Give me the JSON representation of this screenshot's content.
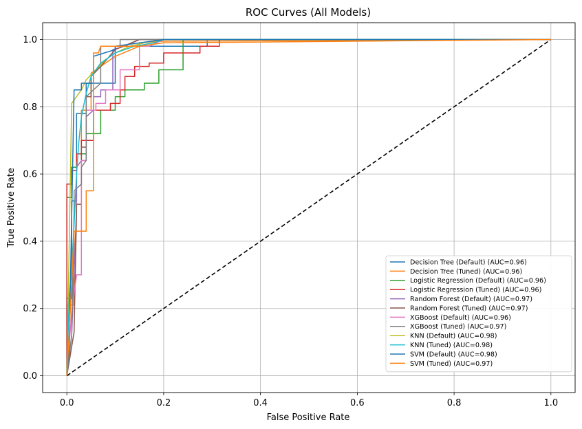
{
  "chart_data": {
    "type": "line",
    "title": "ROC Curves (All Models)",
    "xlabel": "False Positive Rate",
    "ylabel": "True Positive Rate",
    "xlim": [
      -0.05,
      1.05
    ],
    "ylim": [
      -0.05,
      1.05
    ],
    "xticks": [
      0.0,
      0.2,
      0.4,
      0.6,
      0.8,
      1.0
    ],
    "yticks": [
      0.0,
      0.2,
      0.4,
      0.6,
      0.8,
      1.0
    ],
    "xtick_labels": [
      "0.0",
      "0.2",
      "0.4",
      "0.6",
      "0.8",
      "1.0"
    ],
    "ytick_labels": [
      "0.0",
      "0.2",
      "0.4",
      "0.6",
      "0.8",
      "1.0"
    ],
    "grid": true,
    "legend_position": "lower-right",
    "diagonal": {
      "x": [
        0,
        1
      ],
      "y": [
        0,
        1
      ],
      "color": "#000000",
      "style": "dashed"
    },
    "series": [
      {
        "name": "Decision Tree (Default) (AUC=0.96)",
        "color": "#1f77b4",
        "x": [
          0,
          0,
          0.01,
          0.01,
          0.02,
          0.02,
          0.04,
          0.04,
          0.1,
          0.1,
          0.29,
          0.29,
          1.0
        ],
        "y": [
          0,
          0.23,
          0.23,
          0.52,
          0.52,
          0.78,
          0.78,
          0.87,
          0.87,
          0.98,
          0.98,
          1.0,
          1.0
        ]
      },
      {
        "name": "Decision Tree (Tuned) (AUC=0.96)",
        "color": "#ff7f0e",
        "x": [
          0,
          0,
          0.015,
          0.015,
          0.03,
          0.03,
          0.05,
          0.05,
          0.1,
          0.15,
          0.15,
          0.2,
          1.0
        ],
        "y": [
          0,
          0.21,
          0.21,
          0.43,
          0.43,
          0.79,
          0.79,
          0.9,
          0.95,
          0.98,
          0.99,
          0.995,
          1.0
        ]
      },
      {
        "name": "Logistic Regression (Default) (AUC=0.96)",
        "color": "#2ca02c",
        "x": [
          0,
          0,
          0.01,
          0.01,
          0.02,
          0.02,
          0.04,
          0.04,
          0.07,
          0.07,
          0.1,
          0.1,
          0.12,
          0.12,
          0.16,
          0.16,
          0.19,
          0.19,
          0.24,
          0.24,
          1.0
        ],
        "y": [
          0,
          0.53,
          0.53,
          0.62,
          0.62,
          0.66,
          0.66,
          0.72,
          0.72,
          0.79,
          0.79,
          0.83,
          0.83,
          0.85,
          0.85,
          0.87,
          0.87,
          0.91,
          0.91,
          1.0,
          1.0
        ]
      },
      {
        "name": "Logistic Regression (Tuned) (AUC=0.96)",
        "color": "#d62728",
        "x": [
          0,
          0,
          0.01,
          0.01,
          0.02,
          0.02,
          0.03,
          0.03,
          0.055,
          0.055,
          0.09,
          0.09,
          0.11,
          0.11,
          0.12,
          0.12,
          0.14,
          0.14,
          0.17,
          0.17,
          0.2,
          0.2,
          0.235,
          0.235,
          0.275,
          0.275,
          0.315,
          0.315,
          1.0
        ],
        "y": [
          0,
          0.57,
          0.57,
          0.61,
          0.61,
          0.66,
          0.66,
          0.7,
          0.7,
          0.79,
          0.79,
          0.81,
          0.81,
          0.85,
          0.85,
          0.89,
          0.89,
          0.92,
          0.92,
          0.93,
          0.93,
          0.96,
          0.96,
          0.96,
          0.96,
          0.98,
          0.98,
          1.0,
          1.0
        ]
      },
      {
        "name": "Random Forest (Default) (AUC=0.97)",
        "color": "#9467bd",
        "x": [
          0,
          0.01,
          0.02,
          0.02,
          0.03,
          0.04,
          0.04,
          0.055,
          0.055,
          0.07,
          0.07,
          0.095,
          0.095,
          0.12,
          0.15,
          1.0
        ],
        "y": [
          0,
          0.12,
          0.5,
          0.62,
          0.64,
          0.64,
          0.77,
          0.79,
          0.83,
          0.83,
          0.85,
          0.85,
          0.97,
          0.98,
          1.0,
          1.0
        ]
      },
      {
        "name": "Random Forest (Tuned) (AUC=0.97)",
        "color": "#8c564b",
        "x": [
          0,
          0.015,
          0.02,
          0.02,
          0.03,
          0.03,
          0.04,
          0.04,
          0.05,
          0.05,
          0.07,
          0.1,
          0.15,
          1.0
        ],
        "y": [
          0,
          0.13,
          0.49,
          0.51,
          0.51,
          0.68,
          0.68,
          0.83,
          0.83,
          0.89,
          0.92,
          0.97,
          1.0,
          1.0
        ]
      },
      {
        "name": "XGBoost (Default) (AUC=0.96)",
        "color": "#e377c2",
        "x": [
          0,
          0.01,
          0.02,
          0.02,
          0.03,
          0.03,
          0.04,
          0.04,
          0.06,
          0.06,
          0.08,
          0.08,
          0.1,
          0.1,
          0.11,
          0.11,
          0.15,
          0.15,
          0.17,
          0.2,
          1.0
        ],
        "y": [
          0,
          0.19,
          0.3,
          0.3,
          0.3,
          0.64,
          0.64,
          0.79,
          0.79,
          0.81,
          0.81,
          0.85,
          0.85,
          0.85,
          0.85,
          0.91,
          0.91,
          0.98,
          0.98,
          1.0,
          1.0
        ]
      },
      {
        "name": "XGBoost (Tuned) (AUC=0.97)",
        "color": "#7f7f7f",
        "x": [
          0,
          0.01,
          0.015,
          0.015,
          0.03,
          0.03,
          0.04,
          0.04,
          0.07,
          0.07,
          0.11,
          0.11,
          0.15,
          1.0
        ],
        "y": [
          0,
          0.12,
          0.49,
          0.55,
          0.57,
          0.62,
          0.64,
          0.83,
          0.87,
          0.98,
          0.98,
          1.0,
          1.0,
          1.0
        ]
      },
      {
        "name": "KNN (Default) (AUC=0.98)",
        "color": "#bcbd22",
        "x": [
          0,
          0.01,
          0.02,
          0.03,
          0.04,
          0.06,
          0.08,
          0.1,
          0.13,
          0.16,
          0.2,
          1.0
        ],
        "y": [
          0,
          0.81,
          0.83,
          0.85,
          0.88,
          0.91,
          0.94,
          0.96,
          0.98,
          0.99,
          1.0,
          1.0
        ]
      },
      {
        "name": "KNN (Tuned) (AUC=0.98)",
        "color": "#17becf",
        "x": [
          0,
          0.005,
          0.01,
          0.015,
          0.02,
          0.025,
          0.03,
          0.04,
          0.05,
          0.07,
          0.1,
          0.14,
          0.18,
          0.2,
          1.0
        ],
        "y": [
          0,
          0.24,
          0.32,
          0.45,
          0.6,
          0.7,
          0.77,
          0.84,
          0.89,
          0.93,
          0.96,
          0.98,
          0.99,
          1.0,
          1.0
        ]
      },
      {
        "name": "SVM (Default) (AUC=0.98)",
        "color": "#1f77b4",
        "x": [
          0,
          0.005,
          0.015,
          0.015,
          0.03,
          0.03,
          0.055,
          0.055,
          0.1,
          0.1,
          0.2,
          1.0
        ],
        "y": [
          0,
          0.1,
          0.85,
          0.85,
          0.85,
          0.87,
          0.87,
          0.95,
          0.97,
          0.98,
          1.0,
          1.0
        ]
      },
      {
        "name": "SVM (Tuned) (AUC=0.97)",
        "color": "#ff7f0e",
        "x": [
          0,
          0.005,
          0.015,
          0.04,
          0.04,
          0.055,
          0.055,
          0.065,
          0.07,
          0.1,
          0.15,
          0.2,
          1.0
        ],
        "y": [
          0,
          0.13,
          0.43,
          0.43,
          0.55,
          0.55,
          0.96,
          0.96,
          0.98,
          0.98,
          0.98,
          0.99,
          1.0
        ]
      }
    ]
  }
}
